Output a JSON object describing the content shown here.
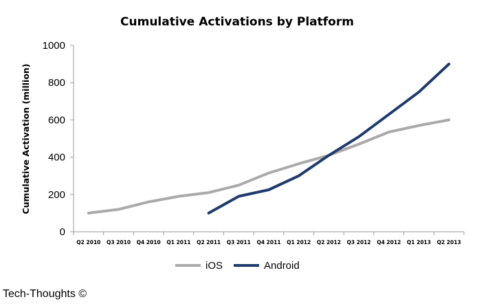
{
  "footer": {
    "credit": "Tech-Thoughts ©"
  },
  "colors": {
    "ios": "#aaaaaa",
    "android": "#1f3a6d",
    "axis": "#999999"
  },
  "chart_data": {
    "type": "line",
    "title": "Cumulative Activations by Platform",
    "xlabel": "",
    "ylabel": "Cumulative Activation  (million)",
    "ylim": [
      0,
      1000
    ],
    "yticks": [
      0,
      200,
      400,
      600,
      800,
      1000
    ],
    "grid": false,
    "legend": "bottom",
    "categories": [
      "Q2 2010",
      "Q3 2010",
      "Q4 2010",
      "Q1 2011",
      "Q2 2011",
      "Q3 2011",
      "Q4 2011",
      "Q1 2012",
      "Q2 2012",
      "Q3 2012",
      "Q4 2012",
      "Q1 2013",
      "Q2 2013"
    ],
    "series": [
      {
        "name": "iOS",
        "values": [
          100,
          120,
          160,
          190,
          210,
          250,
          315,
          365,
          410,
          470,
          535,
          570,
          600
        ]
      },
      {
        "name": "Android",
        "values": [
          null,
          null,
          null,
          null,
          100,
          190,
          225,
          300,
          410,
          510,
          630,
          750,
          900
        ]
      }
    ]
  }
}
